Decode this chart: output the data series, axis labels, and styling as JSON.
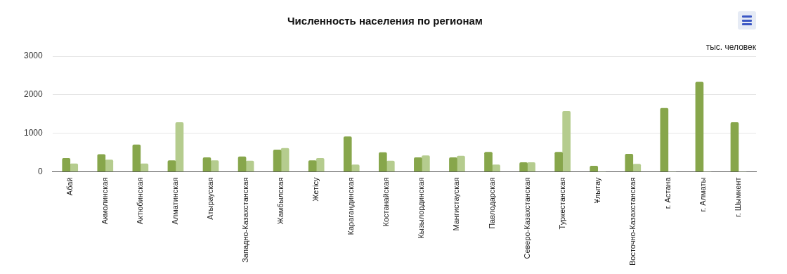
{
  "chart_data": {
    "type": "bar",
    "title": "Численность населения по регионам",
    "annotations": [
      "тыс. человек"
    ],
    "categories": [
      "Абай",
      "Акмолинская",
      "Актюбинская",
      "Алматинская",
      "Атырауская",
      "Западно-Казахстанская",
      "Жамбылская",
      "Жетісу",
      "Карагандинская",
      "Костанайская",
      "Кызылординская",
      "Мангистауская",
      "Павлодарская",
      "Северо-Казахстанская",
      "Туркестанская",
      "Ұлытау",
      "Восточно-Казахстанская",
      "г. Астана",
      "г. Алматы",
      "г. Шымкент"
    ],
    "series": [
      {
        "color": "#87a64b",
        "values": [
          350,
          450,
          700,
          290,
          370,
          390,
          570,
          290,
          910,
          500,
          370,
          370,
          510,
          240,
          510,
          150,
          460,
          1650,
          2330,
          1280
        ]
      },
      {
        "color": "#b5cc8e",
        "values": [
          210,
          310,
          210,
          1280,
          290,
          280,
          610,
          350,
          180,
          280,
          420,
          410,
          180,
          240,
          1570,
          0,
          200,
          0,
          0,
          0
        ]
      }
    ],
    "ylim": [
      0,
      3000
    ],
    "yticks": [
      0,
      1000,
      2000,
      3000
    ],
    "grid": "y",
    "legend": false
  }
}
